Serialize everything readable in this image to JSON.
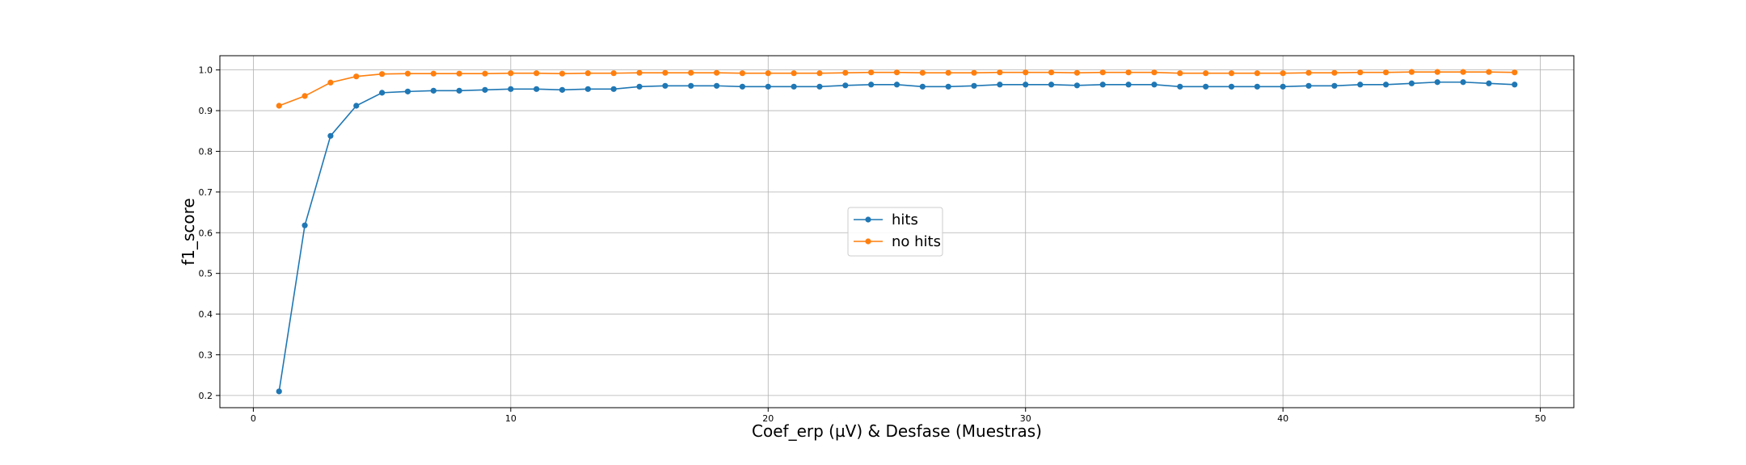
{
  "chart_data": {
    "type": "line",
    "xlabel": "Coef_erp (µV) & Desfase (Muestras)",
    "ylabel": "f1_score",
    "xlim": [
      -1.3,
      51.3
    ],
    "ylim": [
      0.17,
      1.035
    ],
    "xticks": [
      0,
      10,
      20,
      30,
      40,
      50
    ],
    "yticks": [
      0.2,
      0.3,
      0.4,
      0.5,
      0.6,
      0.7,
      0.8,
      0.9,
      1.0
    ],
    "grid": true,
    "legend_position": "center",
    "x": [
      1,
      2,
      3,
      4,
      5,
      6,
      7,
      8,
      9,
      10,
      11,
      12,
      13,
      14,
      15,
      16,
      17,
      18,
      19,
      20,
      21,
      22,
      23,
      24,
      25,
      26,
      27,
      28,
      29,
      30,
      31,
      32,
      33,
      34,
      35,
      36,
      37,
      38,
      39,
      40,
      41,
      42,
      43,
      44,
      45,
      46,
      47,
      48,
      49
    ],
    "series": [
      {
        "name": "hits",
        "color": "#1f77b4",
        "values": [
          0.21,
          0.618,
          0.838,
          0.912,
          0.944,
          0.947,
          0.949,
          0.949,
          0.951,
          0.953,
          0.953,
          0.951,
          0.953,
          0.953,
          0.959,
          0.961,
          0.961,
          0.961,
          0.959,
          0.959,
          0.959,
          0.959,
          0.962,
          0.964,
          0.964,
          0.959,
          0.959,
          0.961,
          0.964,
          0.964,
          0.964,
          0.962,
          0.964,
          0.964,
          0.964,
          0.959,
          0.959,
          0.959,
          0.959,
          0.959,
          0.961,
          0.961,
          0.964,
          0.964,
          0.967,
          0.97,
          0.97,
          0.967,
          0.964
        ]
      },
      {
        "name": "no hits",
        "color": "#ff7f0e",
        "values": [
          0.912,
          0.936,
          0.969,
          0.984,
          0.99,
          0.991,
          0.991,
          0.991,
          0.991,
          0.992,
          0.992,
          0.991,
          0.992,
          0.992,
          0.993,
          0.993,
          0.993,
          0.993,
          0.992,
          0.992,
          0.992,
          0.992,
          0.993,
          0.994,
          0.994,
          0.993,
          0.993,
          0.993,
          0.994,
          0.994,
          0.994,
          0.993,
          0.994,
          0.994,
          0.994,
          0.992,
          0.992,
          0.992,
          0.992,
          0.992,
          0.993,
          0.993,
          0.994,
          0.994,
          0.995,
          0.995,
          0.995,
          0.995,
          0.994
        ]
      }
    ]
  }
}
